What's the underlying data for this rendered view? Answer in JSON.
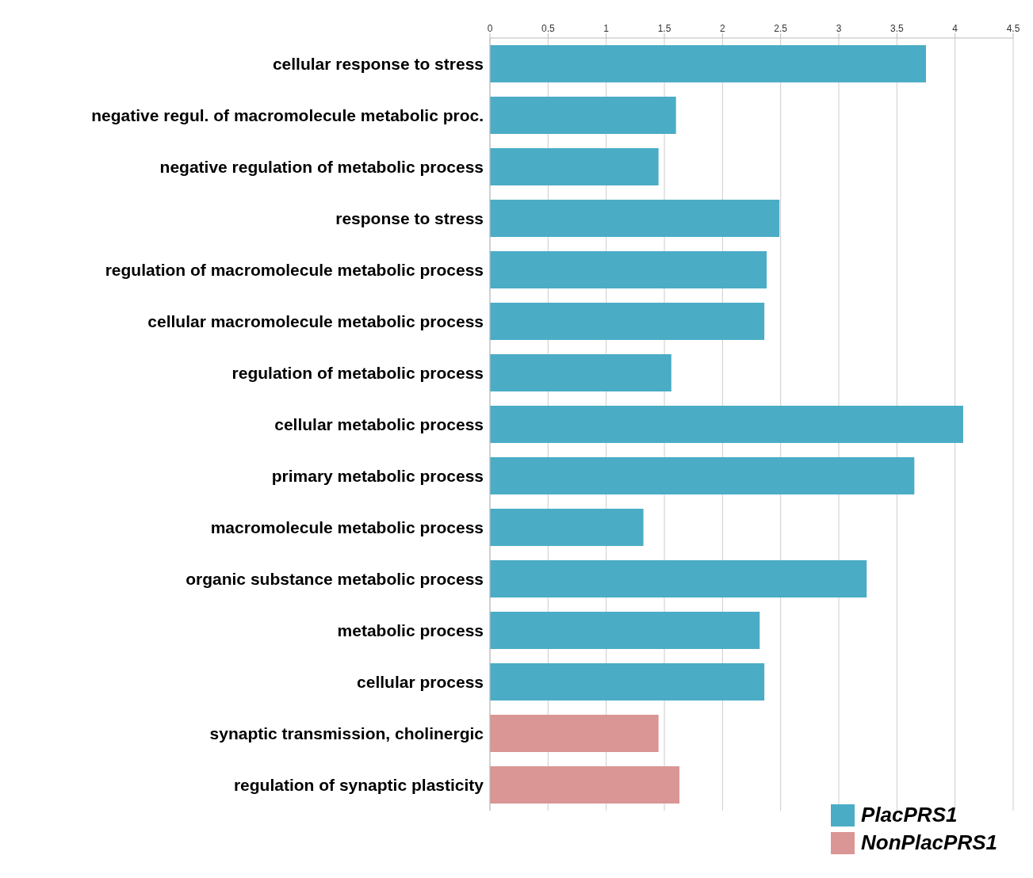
{
  "chart_data": {
    "type": "bar",
    "orientation": "horizontal",
    "stacked": true,
    "categories": [
      "cellular response to stress",
      "negative regul. of macromolecule metabolic proc.",
      "negative regulation of metabolic process",
      "response to stress",
      "regulation of macromolecule metabolic process",
      "cellular macromolecule metabolic process",
      "regulation of metabolic process",
      "cellular metabolic process",
      "primary metabolic process",
      "macromolecule metabolic process",
      "organic substance metabolic process",
      "metabolic process",
      "cellular process",
      "synaptic transmission, cholinergic",
      "regulation of synaptic plasticity"
    ],
    "series": [
      {
        "name": "PlacPRS1",
        "color": "#4bacc6",
        "values": [
          3.75,
          1.6,
          1.45,
          2.49,
          2.38,
          2.36,
          1.56,
          4.07,
          3.65,
          1.32,
          3.24,
          2.32,
          2.36,
          null,
          null
        ]
      },
      {
        "name": "NonPlacPRS1",
        "color": "#d99694",
        "values": [
          null,
          null,
          null,
          null,
          null,
          null,
          null,
          null,
          null,
          null,
          null,
          null,
          null,
          1.45,
          1.63
        ]
      }
    ],
    "xlim": [
      0,
      4.5
    ],
    "xticks": [
      0,
      0.5,
      1,
      1.5,
      2,
      2.5,
      3,
      3.5,
      4,
      4.5
    ],
    "grid": "x",
    "legend": "bottom right"
  }
}
